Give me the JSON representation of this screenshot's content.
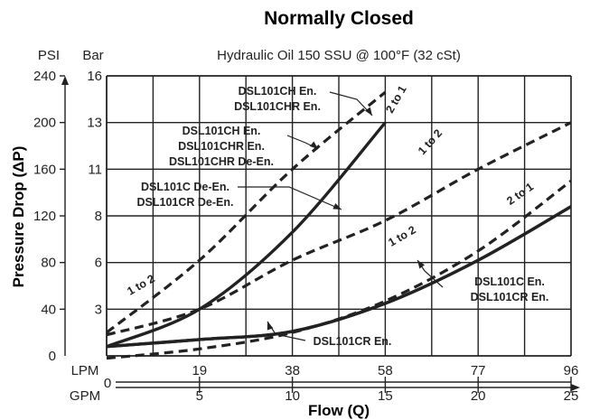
{
  "chart_data": {
    "type": "line",
    "title": "Normally Closed",
    "subtitle": "Hydraulic Oil 150 SSU @ 100°F (32 cSt)",
    "ylabel": "Pressure Drop (ΔP)",
    "xlabel": "Flow (Q)",
    "y_unit_primary": "PSI",
    "y_unit_secondary": "Bar",
    "x_unit_primary": "LPM",
    "x_unit_secondary": "GPM",
    "xlim": [
      0,
      25
    ],
    "ylim": [
      0,
      240
    ],
    "grid": true,
    "x_ticks_gpm": [
      "5",
      "10",
      "15",
      "20",
      "25"
    ],
    "x_ticks_lpm": [
      "19",
      "38",
      "58",
      "77",
      "96"
    ],
    "x_origin_label": "0",
    "y_ticks_psi": [
      "0",
      "40",
      "80",
      "120",
      "160",
      "200",
      "240"
    ],
    "y_ticks_bar": [
      "3",
      "6",
      "8",
      "11",
      "13",
      "16"
    ],
    "series": [
      {
        "style": "solid",
        "x": [
          0,
          5,
          10,
          15
        ],
        "y": [
          8,
          40,
          106,
          200
        ]
      },
      {
        "style": "dashed",
        "x": [
          0,
          5,
          10,
          15
        ],
        "y": [
          20,
          82,
          160,
          226
        ]
      },
      {
        "style": "solid",
        "x": [
          0,
          5,
          10,
          15,
          20,
          25
        ],
        "y": [
          8,
          14,
          21,
          45,
          82,
          128
        ]
      },
      {
        "style": "dashed",
        "x": [
          0,
          5,
          10,
          15,
          20,
          25
        ],
        "y": [
          18,
          40,
          82,
          116,
          160,
          200
        ]
      },
      {
        "style": "dashed",
        "x": [
          0,
          5,
          10,
          15,
          20,
          25
        ],
        "y": [
          -2,
          6,
          20,
          47,
          90,
          150
        ]
      },
      {
        "style": "solid",
        "x": [
          0,
          5,
          10,
          15,
          20,
          25
        ],
        "y": [
          8,
          14,
          21,
          45,
          82,
          128
        ]
      }
    ],
    "annotations": {
      "ratio_labels": [
        "2 to 1",
        "1 to 2",
        "1 to 2",
        "1 to 2",
        "2 to 1"
      ],
      "series_labels": [
        "DSL101CH En.",
        "DSL101CHR En.",
        "DSL101CH En.",
        "DSL101CHR En.",
        "DSL101CHR De-En.",
        "DSL101C De-En.",
        "DSL101CR De-En.",
        "DSL101C En.",
        "DSL101CR En.",
        "DSL101CR En."
      ]
    }
  }
}
